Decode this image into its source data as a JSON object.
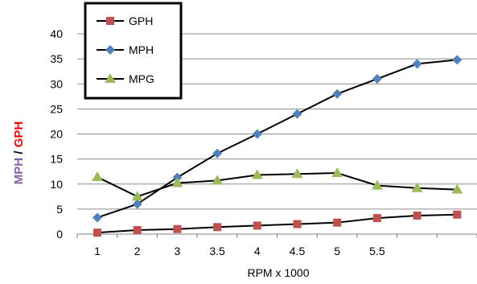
{
  "chart_data": {
    "type": "line",
    "xlabel": "RPM x 1000",
    "ylabel_parts": [
      {
        "text": "MPH",
        "color": "#8064a2"
      },
      {
        "text": " / ",
        "color": "#000000"
      },
      {
        "text": "GPH",
        "color": "#ff0000"
      }
    ],
    "ylim": [
      0,
      40
    ],
    "yticks": [
      0,
      5,
      10,
      15,
      20,
      25,
      30,
      35,
      40
    ],
    "categories": [
      "1",
      "2",
      "3",
      "3.5",
      "4",
      "4.5",
      "5",
      "5.5",
      "",
      ""
    ],
    "series": [
      {
        "name": "GPH",
        "color": "#c0504d",
        "marker": "square",
        "values": [
          0.3,
          0.8,
          1.0,
          1.4,
          1.7,
          2.0,
          2.3,
          3.2,
          3.7,
          3.9
        ]
      },
      {
        "name": "MPH",
        "color": "#4f81bd",
        "marker": "diamond",
        "values": [
          3.3,
          6.0,
          11.3,
          16.1,
          20.0,
          24.0,
          28.0,
          31.0,
          34.0,
          34.8
        ]
      },
      {
        "name": "MPG",
        "color": "#9bbb59",
        "marker": "triangle",
        "values": [
          11.4,
          7.5,
          10.2,
          10.7,
          11.8,
          12.0,
          12.2,
          9.7,
          9.2,
          8.9
        ]
      }
    ],
    "grid": "horizontal",
    "legend_position": "top-left"
  }
}
